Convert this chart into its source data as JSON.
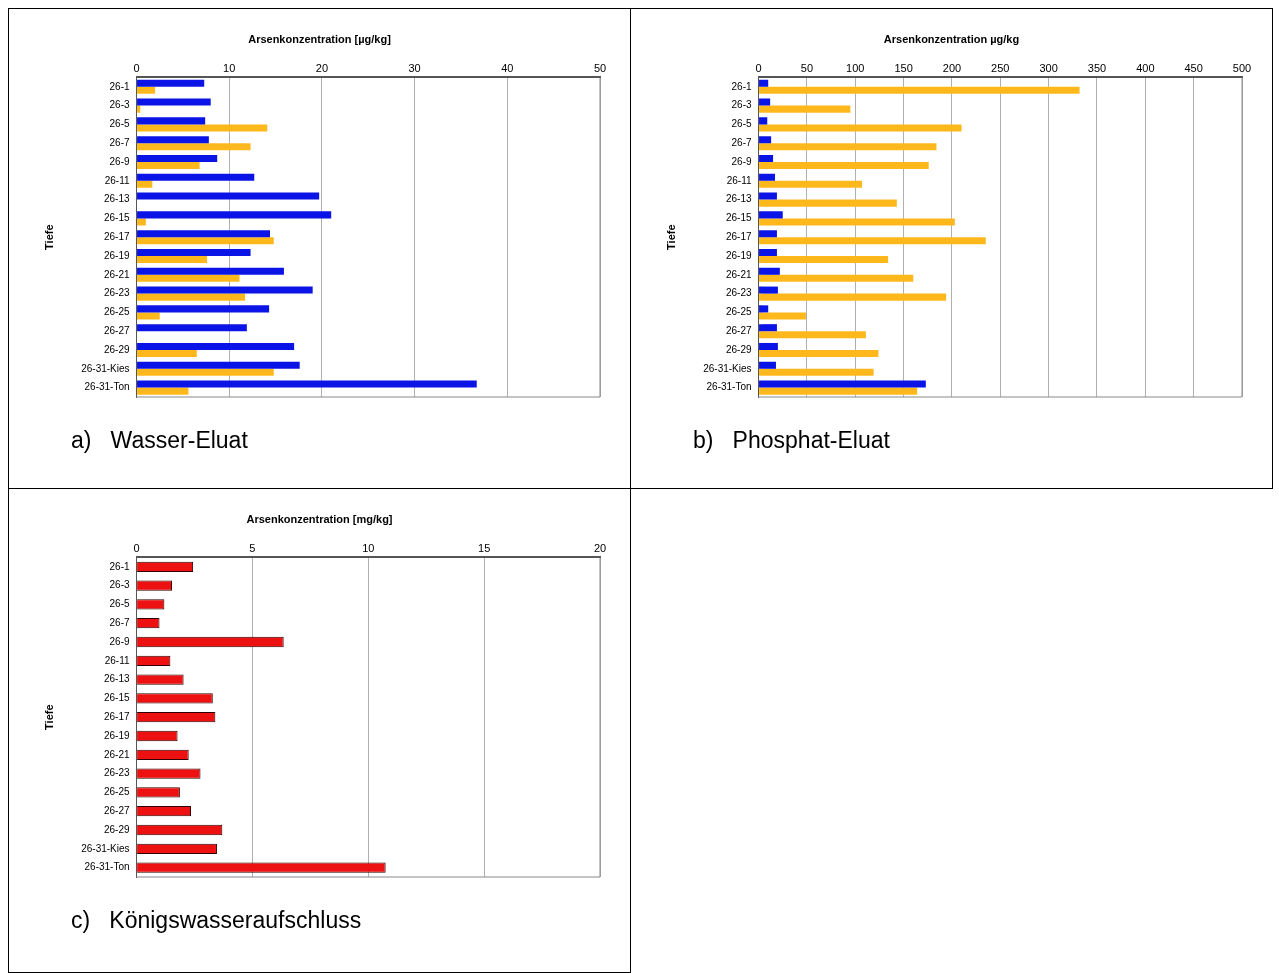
{
  "chart_data": [
    {
      "type": "bar",
      "orientation": "horizontal",
      "title": "Arsenkonzentration [µg/kg]",
      "ylabel": "Tiefe",
      "categories": [
        "26-1",
        "26-3",
        "26-5",
        "26-7",
        "26-9",
        "26-11",
        "26-13",
        "26-15",
        "26-17",
        "26-19",
        "26-21",
        "26-23",
        "26-25",
        "26-27",
        "26-29",
        "26-31-Kies",
        "26-31-Ton"
      ],
      "series": [
        {
          "color": "#0a14e6",
          "values": [
            7.3,
            8.0,
            7.4,
            7.8,
            8.7,
            12.7,
            19.7,
            21.0,
            14.4,
            12.3,
            15.9,
            19.0,
            14.3,
            11.9,
            17.0,
            17.6,
            36.7
          ]
        },
        {
          "color": "#ffb81c",
          "values": [
            2.0,
            0.4,
            14.1,
            12.3,
            6.8,
            1.7,
            null,
            1.0,
            14.8,
            7.6,
            11.1,
            11.7,
            2.5,
            null,
            6.5,
            14.8,
            5.6
          ]
        }
      ],
      "xlim": [
        0,
        50
      ],
      "xticks": [
        0,
        10,
        20,
        30,
        40,
        50
      ],
      "grid": "x",
      "annotations": [
        "a)   Wasser-Eluat"
      ]
    },
    {
      "type": "bar",
      "orientation": "horizontal",
      "title": "Arsenkonzentration µg/kg",
      "ylabel": "Tiefe",
      "categories": [
        "26-1",
        "26-3",
        "26-5",
        "26-7",
        "26-9",
        "26-11",
        "26-13",
        "26-15",
        "26-17",
        "26-19",
        "26-21",
        "26-23",
        "26-25",
        "26-27",
        "26-29",
        "26-31-Kies",
        "26-31-Ton"
      ],
      "series": [
        {
          "color": "#0a14e6",
          "values": [
            10,
            12,
            9,
            13,
            15,
            17,
            19,
            25,
            19,
            19,
            22,
            20,
            10,
            19,
            20,
            18,
            173
          ]
        },
        {
          "color": "#ffb81c",
          "values": [
            332,
            95,
            210,
            184,
            176,
            107,
            143,
            203,
            235,
            134,
            160,
            194,
            49,
            111,
            124,
            119,
            164
          ]
        }
      ],
      "xlim": [
        0,
        500
      ],
      "xticks": [
        0,
        50,
        100,
        150,
        200,
        250,
        300,
        350,
        400,
        450,
        500
      ],
      "grid": "x",
      "annotations": [
        "b)   Phosphat-Eluat"
      ]
    },
    {
      "type": "bar",
      "orientation": "horizontal",
      "title": "Arsenkonzentration [mg/kg]",
      "ylabel": "Tiefe",
      "categories": [
        "26-1",
        "26-3",
        "26-5",
        "26-7",
        "26-9",
        "26-11",
        "26-13",
        "26-15",
        "26-17",
        "26-19",
        "26-21",
        "26-23",
        "26-25",
        "26-27",
        "26-29",
        "26-31-Kies",
        "26-31-Ton"
      ],
      "series": [
        {
          "color": "#ee1111",
          "values": [
            2.44,
            1.53,
            1.2,
            0.99,
            6.35,
            1.46,
            2.03,
            3.29,
            3.4,
            1.77,
            2.25,
            2.76,
            1.87,
            2.35,
            3.7,
            3.47,
            10.75
          ]
        }
      ],
      "xlim": [
        0,
        20
      ],
      "xticks": [
        0,
        5,
        10,
        15,
        20
      ],
      "grid": "x",
      "annotations": [
        "c)   Königswasseraufschluss"
      ]
    }
  ]
}
